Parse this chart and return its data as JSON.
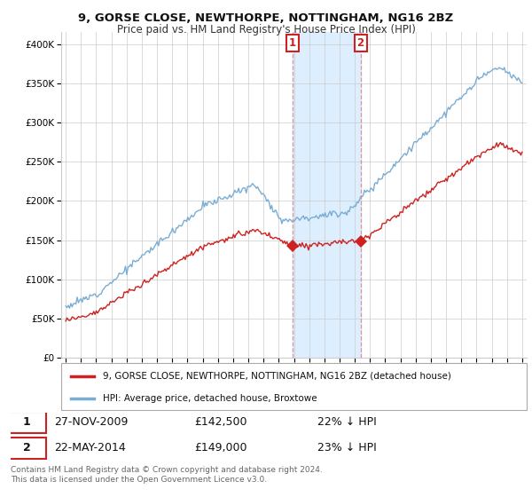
{
  "title": "9, GORSE CLOSE, NEWTHORPE, NOTTINGHAM, NG16 2BZ",
  "subtitle": "Price paid vs. HM Land Registry's House Price Index (HPI)",
  "y_ticks": [
    0,
    50000,
    100000,
    150000,
    200000,
    250000,
    300000,
    350000,
    400000
  ],
  "y_labels": [
    "£0",
    "£50K",
    "£100K",
    "£150K",
    "£200K",
    "£250K",
    "£300K",
    "£350K",
    "£400K"
  ],
  "ylim": [
    0,
    415000
  ],
  "xlim_left": 1994.7,
  "xlim_right": 2025.3,
  "hpi_color": "#7aadd4",
  "price_color": "#cc2222",
  "transaction1_date": 2009.91,
  "transaction1_price": 142500,
  "transaction1_label": "1",
  "transaction2_date": 2014.38,
  "transaction2_price": 149000,
  "transaction2_label": "2",
  "legend_property": "9, GORSE CLOSE, NEWTHORPE, NOTTINGHAM, NG16 2BZ (detached house)",
  "legend_hpi": "HPI: Average price, detached house, Broxtowe",
  "table_rows": [
    {
      "label": "1",
      "date": "27-NOV-2009",
      "price": "£142,500",
      "hpi": "22% ↓ HPI"
    },
    {
      "label": "2",
      "date": "22-MAY-2014",
      "price": "£149,000",
      "hpi": "23% ↓ HPI"
    }
  ],
  "footer": "Contains HM Land Registry data © Crown copyright and database right 2024.\nThis data is licensed under the Open Government Licence v3.0.",
  "background_color": "#ffffff",
  "grid_color": "#cccccc",
  "vspan_color": "#ddeeff",
  "vline_color": "#dd8888"
}
